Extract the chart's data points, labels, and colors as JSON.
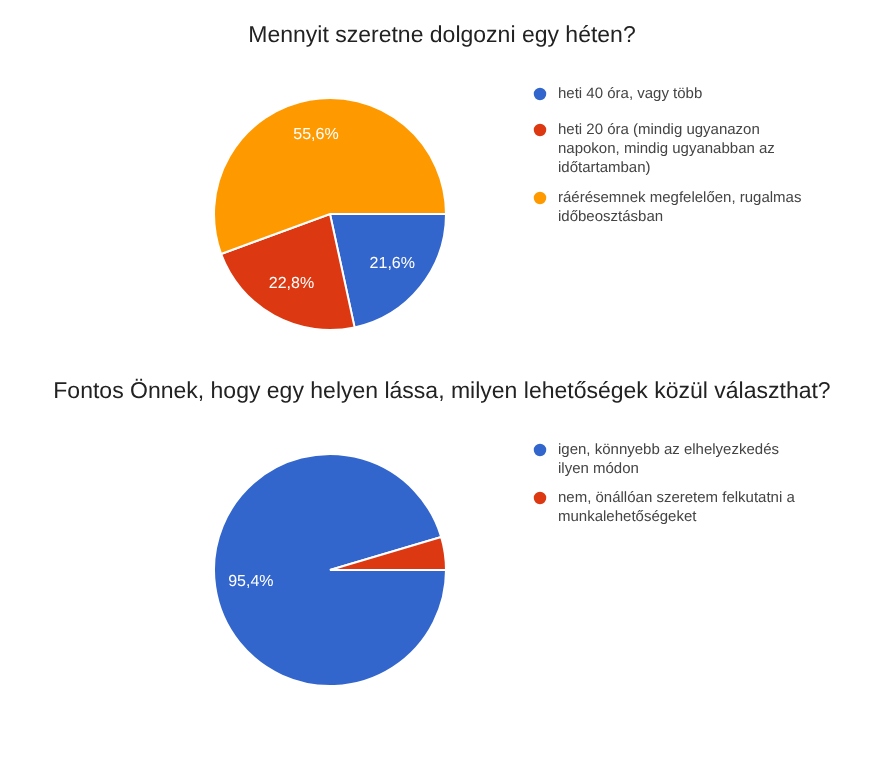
{
  "chart_data": [
    {
      "type": "pie",
      "title": "Mennyit szeretne dolgozni egy héten?",
      "categories": [
        "heti 40 óra, vagy több",
        "heti 20 óra (mindig ugyanazon napokon, mindig ugyanabban az időtartamban)",
        "ráérésemnek megfelelően, rugalmas időbeosztásban"
      ],
      "values": [
        21.6,
        22.8,
        55.6
      ],
      "colors": [
        "#3366cc",
        "#dc3912",
        "#ff9900"
      ],
      "value_labels": [
        "21,6%",
        "22,8%",
        "55,6%"
      ],
      "legend": "right"
    },
    {
      "type": "pie",
      "title": "Fontos Önnek, hogy egy helyen lássa, milyen lehetőségek közül választhat?",
      "categories": [
        "igen, könnyebb az elhelyezkedés ilyen módon",
        "nem, önállóan szeretem felkutatni a munkalehetőségeket"
      ],
      "values": [
        95.4,
        4.6
      ],
      "colors": [
        "#3366cc",
        "#dc3912"
      ],
      "value_labels": [
        "95,4%",
        null
      ],
      "legend": "right"
    }
  ]
}
